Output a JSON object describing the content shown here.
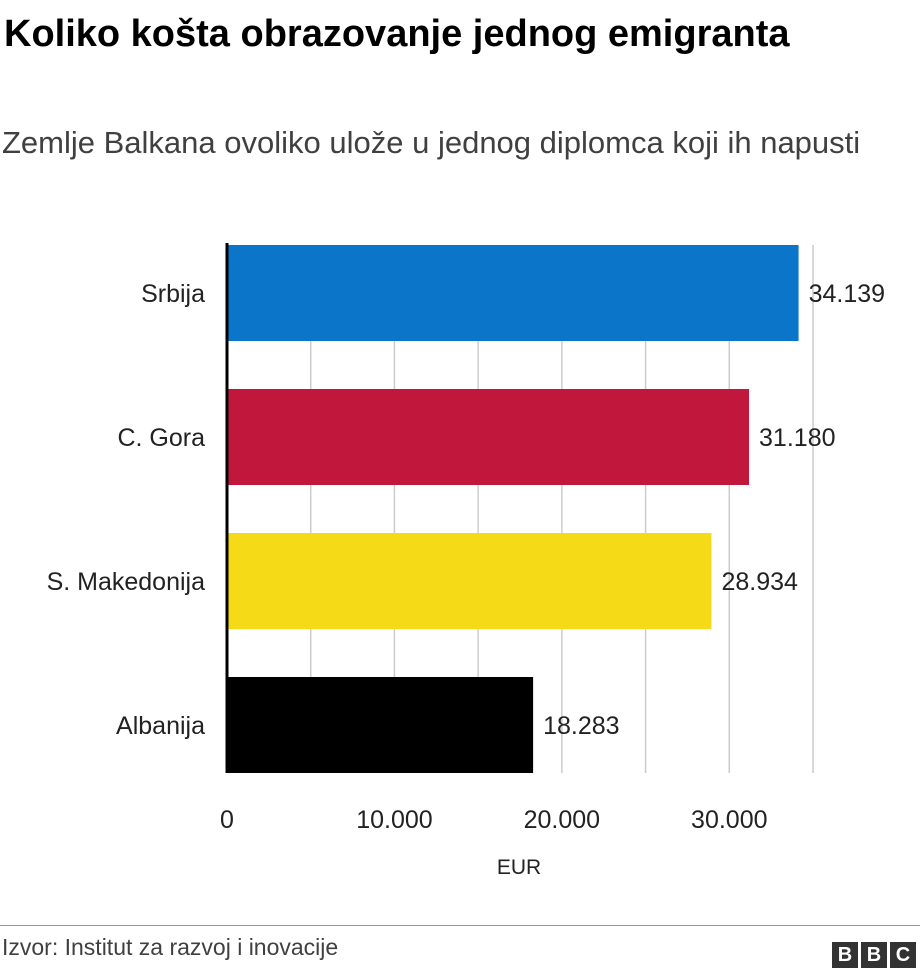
{
  "chart_data": {
    "type": "bar",
    "orientation": "horizontal",
    "title": "Koliko košta obrazovanje jednog emigranta",
    "subtitle": "Zemlje Balkana ovoliko ulože u jednog diplomca koji ih napusti",
    "categories": [
      "Srbija",
      "C. Gora",
      "S. Makedonija",
      "Albanija"
    ],
    "values": [
      34139,
      31180,
      28934,
      18283
    ],
    "value_labels": [
      "34.139",
      "31.180",
      "28.934",
      "18.283"
    ],
    "colors": [
      "#0a75c9",
      "#c1173c",
      "#f5da18",
      "#000000"
    ],
    "xlabel": "EUR",
    "xlim": [
      0,
      35000
    ],
    "xticks": [
      0,
      10000,
      20000,
      30000
    ],
    "xtick_labels": [
      "0",
      "10.000",
      "20.000",
      "30.000"
    ],
    "gridlines": [
      5000,
      10000,
      15000,
      20000,
      25000,
      30000,
      35000
    ],
    "grid": true
  },
  "footer": {
    "source": "Izvor: Institut za razvoj i inovacije",
    "logo": "BBC"
  }
}
